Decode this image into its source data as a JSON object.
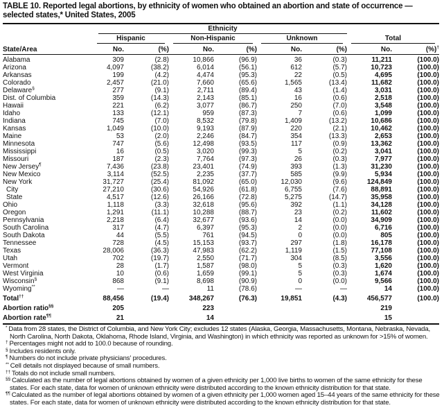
{
  "title": "TABLE 10. Reported legal abortions, by ethnicity of women who obtained an abortion and state of occurrence — selected states,* United States, 2005",
  "header": {
    "ethnicity": "Ethnicity",
    "groups": [
      "Hispanic",
      "Non-Hispanic",
      "Unknown",
      "Total"
    ],
    "state_col": "State/Area",
    "no": "No.",
    "pct": "(%)",
    "total_pct_sup": "†"
  },
  "rows": [
    {
      "state": "Alabama",
      "sup": "",
      "v": [
        "309",
        "(2.8)",
        "10,866",
        "(96.9)",
        "36",
        "(0.3)",
        "11,211",
        "(100.0)"
      ]
    },
    {
      "state": "Arizona",
      "sup": "",
      "v": [
        "4,097",
        "(38.2)",
        "6,014",
        "(56.1)",
        "612",
        "(5.7)",
        "10,723",
        "(100.0)"
      ]
    },
    {
      "state": "Arkansas",
      "sup": "",
      "v": [
        "199",
        "(4.2)",
        "4,474",
        "(95.3)",
        "22",
        "(0.5)",
        "4,695",
        "(100.0)"
      ]
    },
    {
      "state": "Colorado",
      "sup": "",
      "v": [
        "2,457",
        "(21.0)",
        "7,660",
        "(65.6)",
        "1,565",
        "(13.4)",
        "11,682",
        "(100.0)"
      ]
    },
    {
      "state": "Delaware",
      "sup": "§",
      "v": [
        "277",
        "(9.1)",
        "2,711",
        "(89.4)",
        "43",
        "(1.4)",
        "3,031",
        "(100.0)"
      ]
    },
    {
      "state": "Dist. of Columbia",
      "sup": "",
      "v": [
        "359",
        "(14.3)",
        "2,143",
        "(85.1)",
        "16",
        "(0.6)",
        "2,518",
        "(100.0)"
      ]
    },
    {
      "state": "Hawaii",
      "sup": "",
      "v": [
        "221",
        "(6.2)",
        "3,077",
        "(86.7)",
        "250",
        "(7.0)",
        "3,548",
        "(100.0)"
      ]
    },
    {
      "state": "Idaho",
      "sup": "",
      "v": [
        "133",
        "(12.1)",
        "959",
        "(87.3)",
        "7",
        "(0.6)",
        "1,099",
        "(100.0)"
      ]
    },
    {
      "state": "Indiana",
      "sup": "",
      "v": [
        "745",
        "(7.0)",
        "8,532",
        "(79.8)",
        "1,409",
        "(13.2)",
        "10,686",
        "(100.0)"
      ]
    },
    {
      "state": "Kansas",
      "sup": "",
      "v": [
        "1,049",
        "(10.0)",
        "9,193",
        "(87.9)",
        "220",
        "(2.1)",
        "10,462",
        "(100.0)"
      ]
    },
    {
      "state": "Maine",
      "sup": "",
      "v": [
        "53",
        "(2.0)",
        "2,246",
        "(84.7)",
        "354",
        "(13.3)",
        "2,653",
        "(100.0)"
      ]
    },
    {
      "state": "Minnesota",
      "sup": "",
      "v": [
        "747",
        "(5.6)",
        "12,498",
        "(93.5)",
        "117",
        "(0.9)",
        "13,362",
        "(100.0)"
      ]
    },
    {
      "state": "Mississippi",
      "sup": "",
      "v": [
        "16",
        "(0.5)",
        "3,020",
        "(99.3)",
        "5",
        "(0.2)",
        "3,041",
        "(100.0)"
      ]
    },
    {
      "state": "Missouri",
      "sup": "",
      "v": [
        "187",
        "(2.3)",
        "7,764",
        "(97.3)",
        "26",
        "(0.3)",
        "7,977",
        "(100.0)"
      ]
    },
    {
      "state": "New Jersey",
      "sup": "¶",
      "v": [
        "7,436",
        "(23.8)",
        "23,401",
        "(74.9)",
        "393",
        "(1.3)",
        "31,230",
        "(100.0)"
      ]
    },
    {
      "state": "New Mexico",
      "sup": "",
      "v": [
        "3,114",
        "(52.5)",
        "2,235",
        "(37.7)",
        "585",
        "(9.9)",
        "5,934",
        "(100.0)"
      ]
    },
    {
      "state": "New York",
      "sup": "",
      "v": [
        "31,727",
        "(25.4)",
        "81,092",
        "(65.0)",
        "12,030",
        "(9.6)",
        "124,849",
        "(100.0)"
      ]
    },
    {
      "state": "City",
      "sup": "",
      "indent": true,
      "v": [
        "27,210",
        "(30.6)",
        "54,926",
        "(61.8)",
        "6,755",
        "(7.6)",
        "88,891",
        "(100.0)"
      ]
    },
    {
      "state": "State",
      "sup": "",
      "indent": true,
      "v": [
        "4,517",
        "(12.6)",
        "26,166",
        "(72.8)",
        "5,275",
        "(14.7)",
        "35,958",
        "(100.0)"
      ]
    },
    {
      "state": "Ohio",
      "sup": "",
      "v": [
        "1,118",
        "(3.3)",
        "32,618",
        "(95.6)",
        "392",
        "(1.1)",
        "34,128",
        "(100.0)"
      ]
    },
    {
      "state": "Oregon",
      "sup": "",
      "v": [
        "1,291",
        "(11.1)",
        "10,288",
        "(88.7)",
        "23",
        "(0.2)",
        "11,602",
        "(100.0)"
      ]
    },
    {
      "state": "Pennsylvania",
      "sup": "",
      "v": [
        "2,218",
        "(6.4)",
        "32,677",
        "(93.6)",
        "14",
        "(0.0)",
        "34,909",
        "(100.0)"
      ]
    },
    {
      "state": "South Carolina",
      "sup": "",
      "v": [
        "317",
        "(4.7)",
        "6,397",
        "(95.3)",
        "2",
        "(0.0)",
        "6,716",
        "(100.0)"
      ]
    },
    {
      "state": "South Dakota",
      "sup": "",
      "v": [
        "44",
        "(5.5)",
        "761",
        "(94.5)",
        "0",
        "(0.0)",
        "805",
        "(100.0)"
      ]
    },
    {
      "state": "Tennessee",
      "sup": "",
      "v": [
        "728",
        "(4.5)",
        "15,153",
        "(93.7)",
        "297",
        "(1.8)",
        "16,178",
        "(100.0)"
      ]
    },
    {
      "state": "Texas",
      "sup": "",
      "v": [
        "28,006",
        "(36.3)",
        "47,983",
        "(62.2)",
        "1,119",
        "(1.5)",
        "77,108",
        "(100.0)"
      ]
    },
    {
      "state": "Utah",
      "sup": "",
      "v": [
        "702",
        "(19.7)",
        "2,550",
        "(71.7)",
        "304",
        "(8.5)",
        "3,556",
        "(100.0)"
      ]
    },
    {
      "state": "Vermont",
      "sup": "",
      "v": [
        "28",
        "(1.7)",
        "1,587",
        "(98.0)",
        "5",
        "(0.3)",
        "1,620",
        "(100.0)"
      ]
    },
    {
      "state": "West Virginia",
      "sup": "",
      "v": [
        "10",
        "(0.6)",
        "1,659",
        "(99.1)",
        "5",
        "(0.3)",
        "1,674",
        "(100.0)"
      ]
    },
    {
      "state": "Wisconsin",
      "sup": "§",
      "v": [
        "868",
        "(9.1)",
        "8,698",
        "(90.9)",
        "0",
        "(0.0)",
        "9,566",
        "(100.0)"
      ]
    },
    {
      "state": "Wyoming",
      "sup": "**",
      "v": [
        "—",
        "—",
        "11",
        "(78.6)",
        "—",
        "—",
        "14",
        "(100.0)"
      ]
    }
  ],
  "total": {
    "label": "Total",
    "sup": "††",
    "v": [
      "88,456",
      "(19.4)",
      "348,267",
      "(76.3)",
      "19,851",
      "(4.3)",
      "456,577",
      "(100.0)"
    ]
  },
  "ratio": {
    "label": "Abortion ratio",
    "sup": "§§",
    "hispanic": "205",
    "non_hispanic": "223",
    "total": "219"
  },
  "rate": {
    "label": "Abortion rate",
    "sup": "¶¶",
    "hispanic": "21",
    "non_hispanic": "14",
    "total": "15"
  },
  "footnotes": [
    {
      "mark": "*",
      "text": "Data from 28 states, the District of Columbia, and New York City; excludes 12 states (Alaska, Georgia, Massachusetts, Montana, Nebraska, Nevada, North Carolina, North Dakota, Oklahoma, Rhode Island, Virginia, and Washington) in which ethnicity was reported as unknown for >15% of women."
    },
    {
      "mark": "†",
      "text": "Percentages might not add to 100.0 because of rounding."
    },
    {
      "mark": "§",
      "text": "Includes residents only."
    },
    {
      "mark": "¶",
      "text": "Numbers do not include private physicians' procedures."
    },
    {
      "mark": "**",
      "text": "Cell details not displayed because of small numbers."
    },
    {
      "mark": "††",
      "text": "Totals do not include small numbers."
    },
    {
      "mark": "§§",
      "text": "Calculated as the number of legal abortions obtained by women of a given ethnicity per 1,000 live births to women of the same ethnicity for these states. For each state, data for women of unknown ethnicity were distributed according to the known ethnicity distribution for that state."
    },
    {
      "mark": "¶¶",
      "text": "Calculated as the number of legal abortions obtained by women of a given ethnicity per 1,000 women aged 15–44 years of the same ethnicity for these states. For each state, data for women of unknown ethnicity were distributed according to the known ethnicity distribution for that state."
    }
  ]
}
